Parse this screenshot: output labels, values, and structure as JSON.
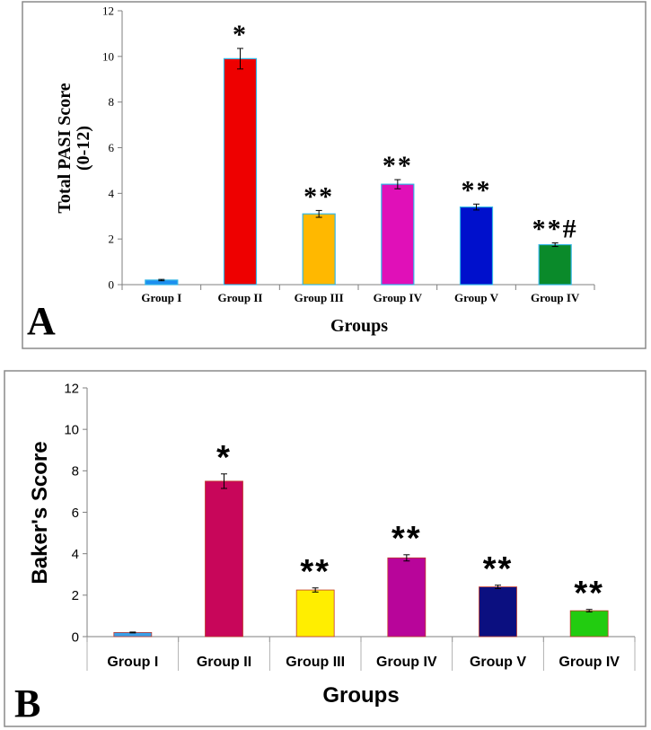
{
  "chart_data": [
    {
      "type": "bar",
      "panel_label": "A",
      "title": "",
      "xlabel": "Groups",
      "ylabel": "Total PASI Score",
      "ylabel_sub": "(0-12)",
      "ylim": [
        0,
        12
      ],
      "yticks": [
        0,
        2,
        4,
        6,
        8,
        10,
        12
      ],
      "grid": false,
      "categories": [
        "Group I",
        "Group II",
        "Group III",
        "Group IV",
        "Group V",
        "Group IV"
      ],
      "values": [
        0.2,
        9.9,
        3.1,
        4.4,
        3.4,
        1.75
      ],
      "errors": [
        0.03,
        0.45,
        0.15,
        0.2,
        0.13,
        0.08
      ],
      "colors": [
        "#1c8ff0",
        "#ee0000",
        "#ffb800",
        "#e010b8",
        "#0010cc",
        "#0a8a2a"
      ],
      "annotations": [
        "",
        "*",
        "**",
        "**",
        "**",
        "**#"
      ]
    },
    {
      "type": "bar",
      "panel_label": "B",
      "title": "",
      "xlabel": "Groups",
      "ylabel": "Baker's Score",
      "ylabel_sub": "",
      "ylim": [
        0,
        12
      ],
      "yticks": [
        0,
        2,
        4,
        6,
        8,
        10,
        12
      ],
      "grid": false,
      "categories": [
        "Group I",
        "Group II",
        "Group III",
        "Group IV",
        "Group V",
        "Group IV"
      ],
      "values": [
        0.2,
        7.5,
        2.25,
        3.8,
        2.4,
        1.25
      ],
      "errors": [
        0.02,
        0.35,
        0.1,
        0.15,
        0.08,
        0.06
      ],
      "colors": [
        "#3a9fe8",
        "#c8065a",
        "#ffee00",
        "#b8059a",
        "#0b0f80",
        "#22cc10"
      ],
      "annotations": [
        "",
        "*",
        "**",
        "**",
        "**",
        "**"
      ]
    }
  ]
}
